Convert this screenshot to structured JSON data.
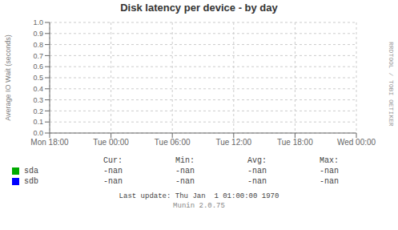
{
  "chart_data": {
    "type": "line",
    "title": "Disk latency per device - by day",
    "ylabel": "Average IO Wait (seconds)",
    "categories": [
      "Mon 18:00",
      "Tue 00:00",
      "Tue 06:00",
      "Tue 12:00",
      "Tue 18:00",
      "Wed 00:00"
    ],
    "series": [
      {
        "name": "sda",
        "color": "#00aa00",
        "values": [
          null,
          null,
          null,
          null,
          null,
          null
        ],
        "stats": [
          "-nan",
          "-nan",
          "-nan",
          "-nan"
        ]
      },
      {
        "name": "sdb",
        "color": "#0000ff",
        "values": [
          null,
          null,
          null,
          null,
          null,
          null
        ],
        "stats": [
          "-nan",
          "-nan",
          "-nan",
          "-nan"
        ]
      }
    ],
    "stats_headers": [
      "Cur:",
      "Min:",
      "Avg:",
      "Max:"
    ],
    "ylim": [
      0.0,
      1.0
    ],
    "yticks": [
      {
        "value": 0.0,
        "label": "0.0"
      },
      0.1,
      0.2,
      0.3,
      0.4,
      0.5,
      0.6,
      0.7,
      0.8,
      0.9,
      {
        "value": 1.0,
        "label": "1.0"
      }
    ],
    "grid": true,
    "annotations": [
      "Last update: Thu Jan  1 01:00:00 1970",
      "Munin 2.0.75",
      "RRDTOOL / TOBI OETIKER"
    ]
  }
}
